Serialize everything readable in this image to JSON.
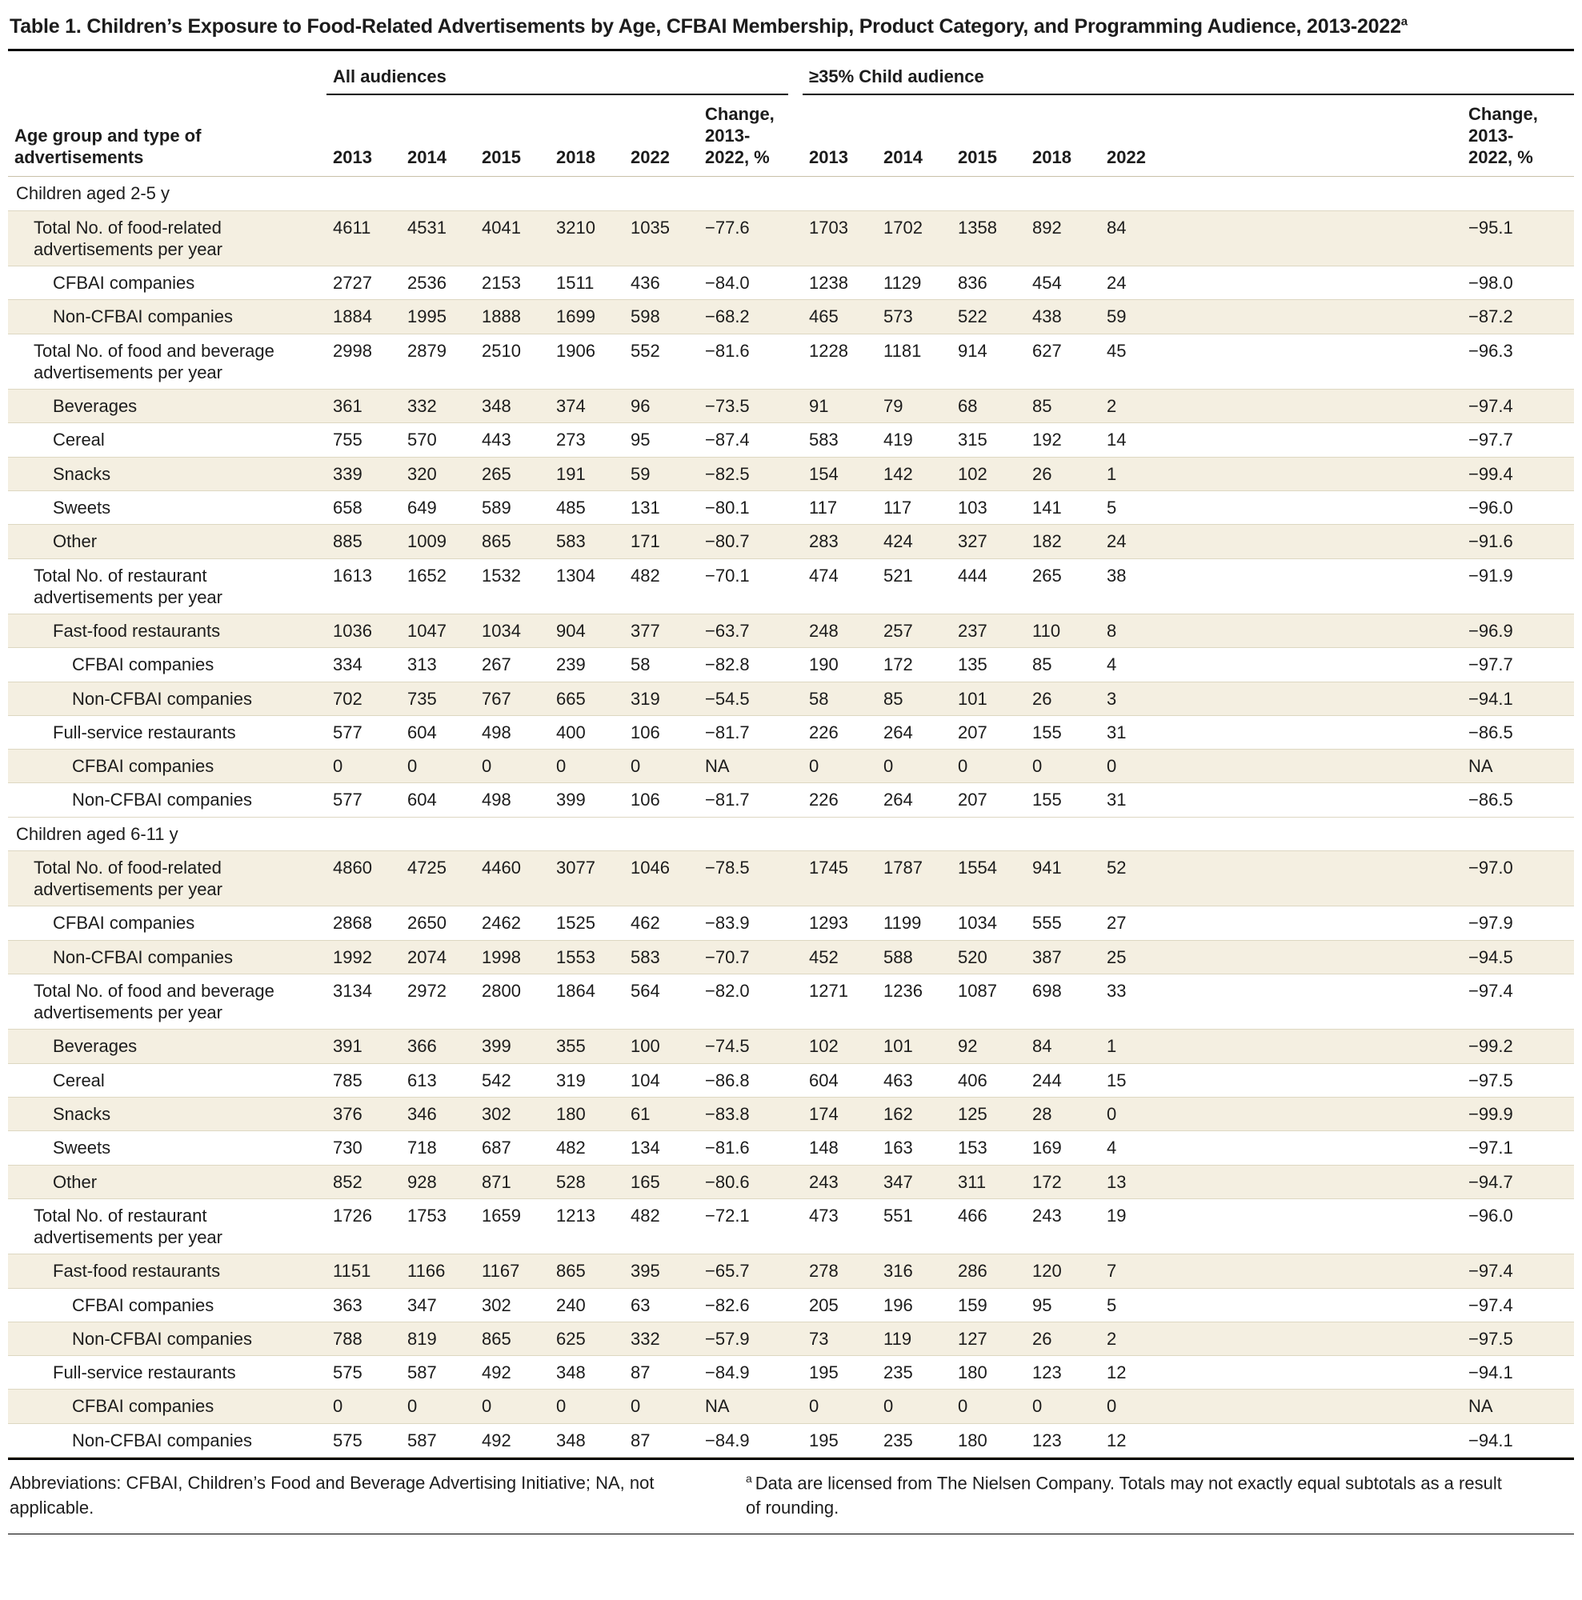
{
  "title": "Table 1. Children’s Exposure to Food-Related Advertisements by Age, CFBAI Membership, Product Category, and Programming Audience, 2013-2022",
  "title_sup": "a",
  "colors": {
    "stripe": "#f4efe1",
    "rule": "#000000"
  },
  "header": {
    "row_label": "Age group and type of advertisements",
    "groups": [
      {
        "label": "All audiences",
        "years": [
          "2013",
          "2014",
          "2015",
          "2018",
          "2022"
        ],
        "change_label": "Change,\n2013-\n2022, %"
      },
      {
        "label": "≥35% Child audience",
        "years": [
          "2013",
          "2014",
          "2015",
          "2018",
          "2022"
        ],
        "change_label": "Change,\n2013-\n2022, %"
      }
    ]
  },
  "sections": [
    {
      "label": "Children aged 2-5 y",
      "rows": [
        {
          "label": "Total No. of food-related advertisements per year",
          "indent": 1,
          "all": [
            "4611",
            "4531",
            "4041",
            "3210",
            "1035",
            "−77.6"
          ],
          "child": [
            "1703",
            "1702",
            "1358",
            "892",
            "84",
            "−95.1"
          ]
        },
        {
          "label": "CFBAI companies",
          "indent": 2,
          "all": [
            "2727",
            "2536",
            "2153",
            "1511",
            "436",
            "−84.0"
          ],
          "child": [
            "1238",
            "1129",
            "836",
            "454",
            "24",
            "−98.0"
          ]
        },
        {
          "label": "Non-CFBAI companies",
          "indent": 2,
          "all": [
            "1884",
            "1995",
            "1888",
            "1699",
            "598",
            "−68.2"
          ],
          "child": [
            "465",
            "573",
            "522",
            "438",
            "59",
            "−87.2"
          ]
        },
        {
          "label": "Total No. of food and beverage advertisements per year",
          "indent": 1,
          "all": [
            "2998",
            "2879",
            "2510",
            "1906",
            "552",
            "−81.6"
          ],
          "child": [
            "1228",
            "1181",
            "914",
            "627",
            "45",
            "−96.3"
          ]
        },
        {
          "label": "Beverages",
          "indent": 2,
          "all": [
            "361",
            "332",
            "348",
            "374",
            "96",
            "−73.5"
          ],
          "child": [
            "91",
            "79",
            "68",
            "85",
            "2",
            "−97.4"
          ]
        },
        {
          "label": "Cereal",
          "indent": 2,
          "all": [
            "755",
            "570",
            "443",
            "273",
            "95",
            "−87.4"
          ],
          "child": [
            "583",
            "419",
            "315",
            "192",
            "14",
            "−97.7"
          ]
        },
        {
          "label": "Snacks",
          "indent": 2,
          "all": [
            "339",
            "320",
            "265",
            "191",
            "59",
            "−82.5"
          ],
          "child": [
            "154",
            "142",
            "102",
            "26",
            "1",
            "−99.4"
          ]
        },
        {
          "label": "Sweets",
          "indent": 2,
          "all": [
            "658",
            "649",
            "589",
            "485",
            "131",
            "−80.1"
          ],
          "child": [
            "117",
            "117",
            "103",
            "141",
            "5",
            "−96.0"
          ]
        },
        {
          "label": "Other",
          "indent": 2,
          "all": [
            "885",
            "1009",
            "865",
            "583",
            "171",
            "−80.7"
          ],
          "child": [
            "283",
            "424",
            "327",
            "182",
            "24",
            "−91.6"
          ]
        },
        {
          "label": "Total No. of restaurant advertisements per year",
          "indent": 1,
          "all": [
            "1613",
            "1652",
            "1532",
            "1304",
            "482",
            "−70.1"
          ],
          "child": [
            "474",
            "521",
            "444",
            "265",
            "38",
            "−91.9"
          ]
        },
        {
          "label": "Fast-food restaurants",
          "indent": 2,
          "all": [
            "1036",
            "1047",
            "1034",
            "904",
            "377",
            "−63.7"
          ],
          "child": [
            "248",
            "257",
            "237",
            "110",
            "8",
            "−96.9"
          ]
        },
        {
          "label": "CFBAI companies",
          "indent": 3,
          "all": [
            "334",
            "313",
            "267",
            "239",
            "58",
            "−82.8"
          ],
          "child": [
            "190",
            "172",
            "135",
            "85",
            "4",
            "−97.7"
          ]
        },
        {
          "label": "Non-CFBAI companies",
          "indent": 3,
          "all": [
            "702",
            "735",
            "767",
            "665",
            "319",
            "−54.5"
          ],
          "child": [
            "58",
            "85",
            "101",
            "26",
            "3",
            "−94.1"
          ]
        },
        {
          "label": "Full-service restaurants",
          "indent": 2,
          "all": [
            "577",
            "604",
            "498",
            "400",
            "106",
            "−81.7"
          ],
          "child": [
            "226",
            "264",
            "207",
            "155",
            "31",
            "−86.5"
          ]
        },
        {
          "label": "CFBAI companies",
          "indent": 3,
          "all": [
            "0",
            "0",
            "0",
            "0",
            "0",
            "NA"
          ],
          "child": [
            "0",
            "0",
            "0",
            "0",
            "0",
            "NA"
          ]
        },
        {
          "label": "Non-CFBAI companies",
          "indent": 3,
          "all": [
            "577",
            "604",
            "498",
            "399",
            "106",
            "−81.7"
          ],
          "child": [
            "226",
            "264",
            "207",
            "155",
            "31",
            "−86.5"
          ]
        }
      ]
    },
    {
      "label": "Children aged 6-11 y",
      "rows": [
        {
          "label": "Total No. of food-related advertisements per year",
          "indent": 1,
          "all": [
            "4860",
            "4725",
            "4460",
            "3077",
            "1046",
            "−78.5"
          ],
          "child": [
            "1745",
            "1787",
            "1554",
            "941",
            "52",
            "−97.0"
          ]
        },
        {
          "label": "CFBAI companies",
          "indent": 2,
          "all": [
            "2868",
            "2650",
            "2462",
            "1525",
            "462",
            "−83.9"
          ],
          "child": [
            "1293",
            "1199",
            "1034",
            "555",
            "27",
            "−97.9"
          ]
        },
        {
          "label": "Non-CFBAI companies",
          "indent": 2,
          "all": [
            "1992",
            "2074",
            "1998",
            "1553",
            "583",
            "−70.7"
          ],
          "child": [
            "452",
            "588",
            "520",
            "387",
            "25",
            "−94.5"
          ]
        },
        {
          "label": "Total No. of food and beverage advertisements per year",
          "indent": 1,
          "all": [
            "3134",
            "2972",
            "2800",
            "1864",
            "564",
            "−82.0"
          ],
          "child": [
            "1271",
            "1236",
            "1087",
            "698",
            "33",
            "−97.4"
          ]
        },
        {
          "label": "Beverages",
          "indent": 2,
          "all": [
            "391",
            "366",
            "399",
            "355",
            "100",
            "−74.5"
          ],
          "child": [
            "102",
            "101",
            "92",
            "84",
            "1",
            "−99.2"
          ]
        },
        {
          "label": "Cereal",
          "indent": 2,
          "all": [
            "785",
            "613",
            "542",
            "319",
            "104",
            "−86.8"
          ],
          "child": [
            "604",
            "463",
            "406",
            "244",
            "15",
            "−97.5"
          ]
        },
        {
          "label": "Snacks",
          "indent": 2,
          "all": [
            "376",
            "346",
            "302",
            "180",
            "61",
            "−83.8"
          ],
          "child": [
            "174",
            "162",
            "125",
            "28",
            "0",
            "−99.9"
          ]
        },
        {
          "label": "Sweets",
          "indent": 2,
          "all": [
            "730",
            "718",
            "687",
            "482",
            "134",
            "−81.6"
          ],
          "child": [
            "148",
            "163",
            "153",
            "169",
            "4",
            "−97.1"
          ]
        },
        {
          "label": "Other",
          "indent": 2,
          "all": [
            "852",
            "928",
            "871",
            "528",
            "165",
            "−80.6"
          ],
          "child": [
            "243",
            "347",
            "311",
            "172",
            "13",
            "−94.7"
          ]
        },
        {
          "label": "Total No. of restaurant advertisements per year",
          "indent": 1,
          "all": [
            "1726",
            "1753",
            "1659",
            "1213",
            "482",
            "−72.1"
          ],
          "child": [
            "473",
            "551",
            "466",
            "243",
            "19",
            "−96.0"
          ]
        },
        {
          "label": "Fast-food restaurants",
          "indent": 2,
          "all": [
            "1151",
            "1166",
            "1167",
            "865",
            "395",
            "−65.7"
          ],
          "child": [
            "278",
            "316",
            "286",
            "120",
            "7",
            "−97.4"
          ]
        },
        {
          "label": "CFBAI companies",
          "indent": 3,
          "all": [
            "363",
            "347",
            "302",
            "240",
            "63",
            "−82.6"
          ],
          "child": [
            "205",
            "196",
            "159",
            "95",
            "5",
            "−97.4"
          ]
        },
        {
          "label": "Non-CFBAI companies",
          "indent": 3,
          "all": [
            "788",
            "819",
            "865",
            "625",
            "332",
            "−57.9"
          ],
          "child": [
            "73",
            "119",
            "127",
            "26",
            "2",
            "−97.5"
          ]
        },
        {
          "label": "Full-service restaurants",
          "indent": 2,
          "all": [
            "575",
            "587",
            "492",
            "348",
            "87",
            "−84.9"
          ],
          "child": [
            "195",
            "235",
            "180",
            "123",
            "12",
            "−94.1"
          ]
        },
        {
          "label": "CFBAI companies",
          "indent": 3,
          "all": [
            "0",
            "0",
            "0",
            "0",
            "0",
            "NA"
          ],
          "child": [
            "0",
            "0",
            "0",
            "0",
            "0",
            "NA"
          ]
        },
        {
          "label": "Non-CFBAI companies",
          "indent": 3,
          "all": [
            "575",
            "587",
            "492",
            "348",
            "87",
            "−84.9"
          ],
          "child": [
            "195",
            "235",
            "180",
            "123",
            "12",
            "−94.1"
          ]
        }
      ]
    }
  ],
  "footnotes": {
    "abbreviations": "Abbreviations: CFBAI, Children’s Food and Beverage Advertising Initiative; NA, not applicable.",
    "marker": "a",
    "source": "Data are licensed from The Nielsen Company. Totals may not exactly equal subtotals as a result of rounding."
  }
}
